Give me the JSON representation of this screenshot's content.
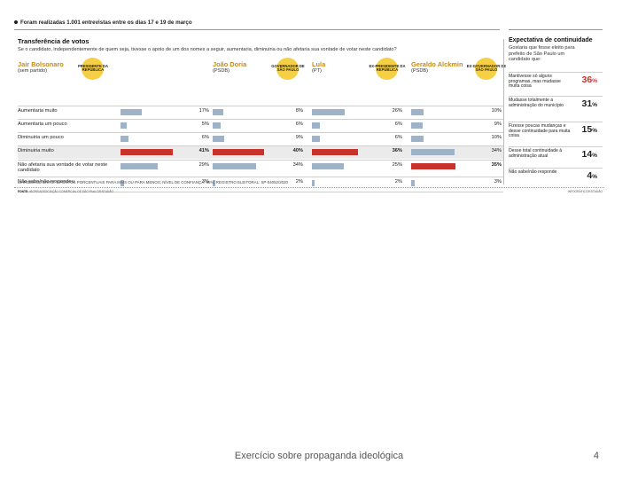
{
  "infographic": {
    "topnote": "Foram realizadas 1.001 entrevistas entre os dias 17 e 19 de março",
    "main_title": "Transferência de votos",
    "main_question": "Se o candidato, independentemente de quem seja, tivesse o apoio de um dos nomes a seguir, aumentaria, diminuiria ou não afetaria sua vontade de votar neste candidato?",
    "colors": {
      "bar_default": "#9fb3c8",
      "bar_highlight": "#c7332b",
      "role_circle": "#f5cf45",
      "name_color": "#c58b18",
      "row_highlight_bg": "#ebebeb"
    },
    "candidates": [
      {
        "name": "Jair Bolsonaro",
        "party": "(sem partido)",
        "role": "PRESIDENTE DA REPÚBLICA"
      },
      {
        "name": "João Doria",
        "party": "(PSDB)",
        "role": "GOVERNADOR DE SÃO PAULO"
      },
      {
        "name": "Lula",
        "party": "(PT)",
        "role": "EX-PRESIDENTE DA REPÚBLICA"
      },
      {
        "name": "Geraldo Alckmin",
        "party": "(PSDB)",
        "role": "EX-GOVERNADOR DE SÃO PAULO"
      }
    ],
    "footnote": "MARGEM DE ERRO: 3 PONTOS PORCENTUAIS PARA MAIS OU PARA MENOS; NÍVEL DE CONFIANÇA: 95%; REGISTRO ELEITORAL: SP-04052/2020",
    "source_label": "FONTE:",
    "source_text": "IBOPE/ASSOCIAÇÃO COMERCIAL DE SÃO PAULO/ESTADÃO",
    "credit": "INFOGRÁFICO/ESTADÃO",
    "side": {
      "title": "Expectativa de continuidade",
      "question": "Gostaria que fosse eleito para prefeito de São Paulo um candidato que:",
      "items": [
        {
          "label": "Mantivesse só alguns programas, mas mudasse muita coisa",
          "value": "36",
          "unit": "%",
          "accent": true
        },
        {
          "label": "Mudasse totalmente a administração do município",
          "value": "31",
          "unit": "%",
          "accent": false
        },
        {
          "label": "Fizesse poucas mudanças e desse continuidade para muita coisa",
          "value": "15",
          "unit": "%",
          "accent": false
        },
        {
          "label": "Desse total continuidade à administração atual",
          "value": "14",
          "unit": "%",
          "accent": false
        },
        {
          "label": "Não sabe/não responde",
          "value": "4",
          "unit": "%",
          "accent": false
        }
      ]
    }
  },
  "chart_data": {
    "type": "bar",
    "title": "Transferência de votos",
    "categories": [
      "Aumentaria muito",
      "Aumentaria um pouco",
      "Diminuiria um pouco",
      "Diminuiria muito",
      "Não afetaria sua vontade de votar neste candidato",
      "Não sabe/não respondeu"
    ],
    "highlight_category": "Diminuiria muito",
    "value_suffix": "%",
    "xlim": [
      0,
      50
    ],
    "series": [
      {
        "name": "Jair Bolsonaro",
        "values": [
          17,
          5,
          6,
          41,
          29,
          3
        ],
        "highlight_index": 3
      },
      {
        "name": "João Doria",
        "values": [
          8,
          6,
          9,
          40,
          34,
          2
        ],
        "highlight_index": 3
      },
      {
        "name": "Lula",
        "values": [
          26,
          6,
          6,
          36,
          25,
          2
        ],
        "highlight_index": 3
      },
      {
        "name": "Geraldo Alckmin",
        "values": [
          10,
          9,
          10,
          34,
          35,
          3
        ],
        "highlight_index": 4
      }
    ]
  },
  "slide": {
    "footer": "Exercício sobre propaganda ideológica",
    "page_number": "4"
  }
}
